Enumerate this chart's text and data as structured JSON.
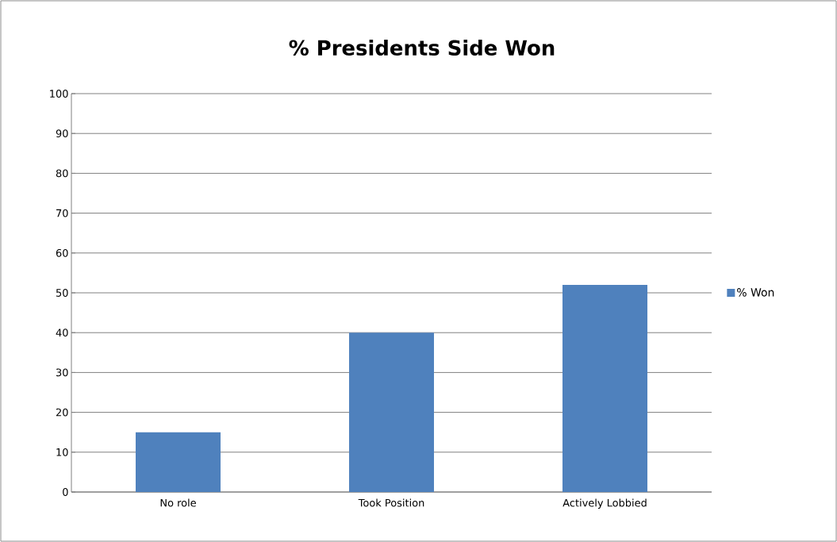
{
  "chart_data": {
    "type": "bar",
    "title": "% Presidents Side Won",
    "categories": [
      "No role",
      "Took Position",
      "Actively Lobbied"
    ],
    "series": [
      {
        "name": "% Won",
        "color": "#4f81bd",
        "values": [
          15,
          40,
          52
        ]
      }
    ],
    "ylim": [
      0,
      100
    ],
    "yticks": [
      0,
      10,
      20,
      30,
      40,
      50,
      60,
      70,
      80,
      90,
      100
    ],
    "grid": "y",
    "legend": "right"
  }
}
